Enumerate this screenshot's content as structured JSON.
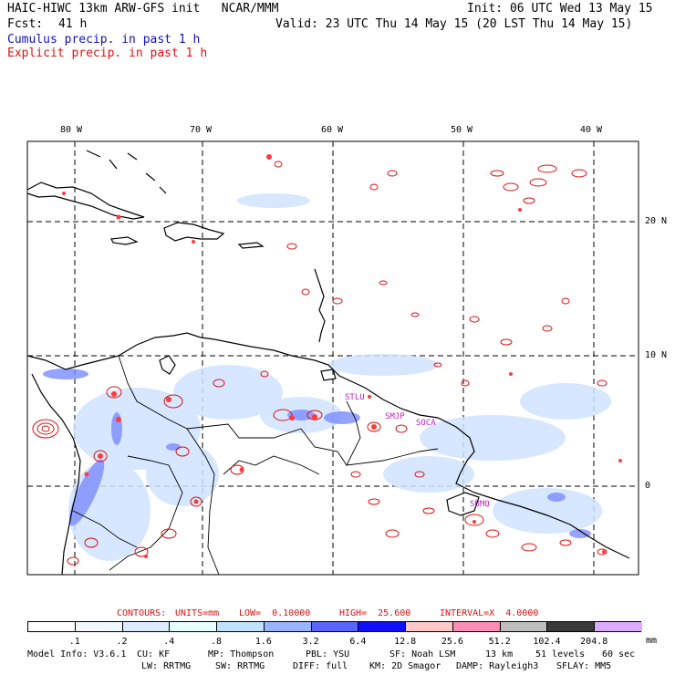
{
  "header": {
    "model": "HAIC-HIWC 13km ARW-GFS init   NCAR/MMM",
    "init": "Init: 06 UTC Wed 13 May 15",
    "fcst_label": "Fcst:",
    "fcst_value": "41 h",
    "valid": "Valid: 23 UTC Thu 14 May 15 (20 LST Thu 14 May 15)",
    "cumulus": "Cumulus precip. in past 1 h",
    "explicit": "Explicit precip. in past 1 h"
  },
  "axes": {
    "lon_labels": [
      "80 W",
      "70 W",
      "60 W",
      "50 W",
      "40 W"
    ],
    "lat_labels": [
      "20 N",
      "10 N",
      "0"
    ]
  },
  "stations": [
    "STLU",
    "SMJP",
    "SOCA",
    "SBMQ"
  ],
  "contours_line": {
    "prefix": "CONTOURS:",
    "units": "UNITS=mm",
    "low": "LOW=  0.10000",
    "high": "HIGH=  25.600",
    "interval": "INTERVAL=X  4.0000"
  },
  "colorbar": {
    "labels": [
      ".1",
      ".2",
      ".4",
      ".8",
      "1.6",
      "3.2",
      "6.4",
      "12.8",
      "25.6",
      "51.2",
      "102.4",
      "204.8"
    ],
    "unit": "mm",
    "colors": [
      "#ffffff",
      "#f0f7ff",
      "#dcecff",
      "#e6ffff",
      "#bfe3ff",
      "#96b4ff",
      "#5a64ff",
      "#1010ff",
      "#ffc8c8",
      "#ff8cb4",
      "#bebebe",
      "#3a3a3a",
      "#dcaaff"
    ]
  },
  "model_info": {
    "line1": [
      "Model Info: V3.6.1",
      "CU: KF",
      "MP: Thompson",
      "PBL: YSU",
      "SF: Noah LSM",
      "13 km",
      "51 levels",
      "60 sec"
    ],
    "line2": [
      "LW: RRTMG",
      "SW: RRTMG",
      "DIFF: full",
      "KM: 2D Smagor",
      "DAMP: Rayleigh3",
      "SFLAY: MM5"
    ]
  }
}
